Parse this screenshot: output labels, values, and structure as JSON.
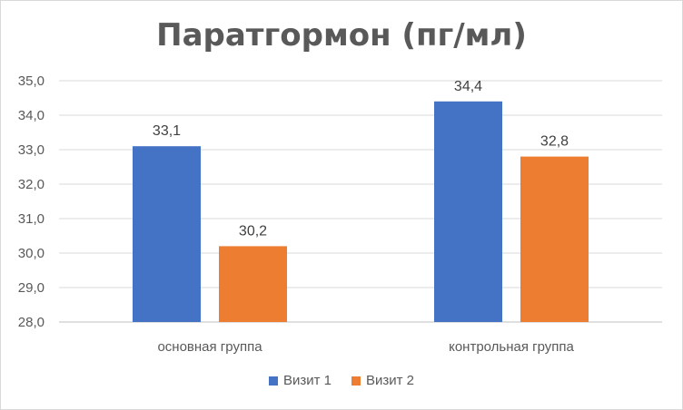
{
  "chart_data": {
    "type": "bar",
    "title": "Паратгормон (пг/мл)",
    "categories": [
      "основная группа",
      "контрольная группа"
    ],
    "series": [
      {
        "name": "Визит 1",
        "values": [
          33.1,
          34.4
        ],
        "labels": [
          "33,1",
          "34,4"
        ],
        "color": "#4472c4"
      },
      {
        "name": "Визит 2",
        "values": [
          30.2,
          32.8
        ],
        "labels": [
          "30,2",
          "32,8"
        ],
        "color": "#ed7d31"
      }
    ],
    "ylim": [
      28,
      35
    ],
    "yticks": [
      28,
      29,
      30,
      31,
      32,
      33,
      34,
      35
    ],
    "ytick_labels": [
      "28,0",
      "29,0",
      "30,0",
      "31,0",
      "32,0",
      "33,0",
      "34,0",
      "35,0"
    ],
    "grid": true,
    "legend_position": "bottom"
  }
}
